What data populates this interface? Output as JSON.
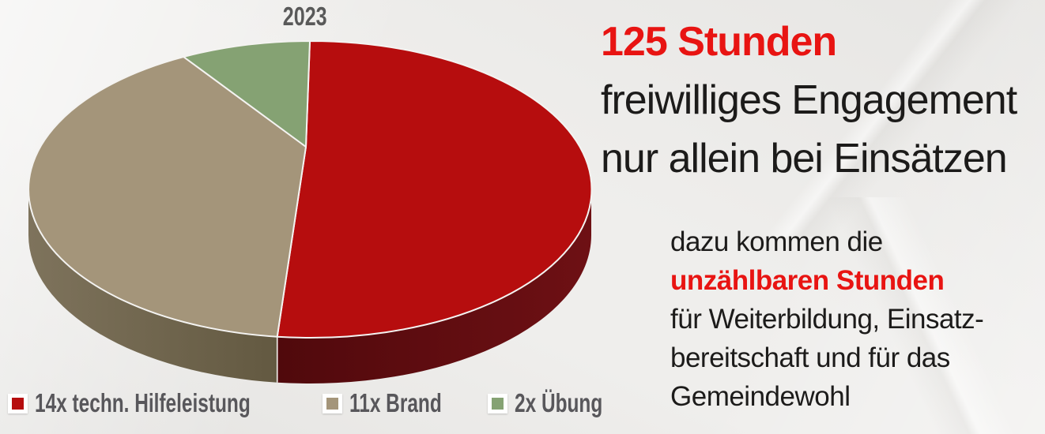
{
  "chart_data": {
    "type": "pie",
    "style": "3d-pie",
    "title": "2023",
    "labels": [
      "14x techn. Hilfeleistung",
      "11x Brand",
      "2x Übung"
    ],
    "values": [
      14,
      11,
      2
    ],
    "colors": [
      "#b60d0e",
      "#a4957a",
      "#85a273"
    ],
    "side_colors": [
      [
        "#50090c",
        "#6e1014"
      ],
      [
        "#7e735c",
        "#635941"
      ],
      null
    ],
    "separator_color": "#f4f3f1",
    "start_angle_deg": 0,
    "direction": "clockwise",
    "legend_position": "bottom",
    "title_color": "#595959",
    "legend_text_color": "#58575b"
  },
  "headline": {
    "line1": "125 Stunden",
    "line2": "freiwilliges Engagement",
    "line3": "nur allein bei Einsätzen",
    "accent_color": "#e81412",
    "text_color": "#1c1b1a"
  },
  "note": {
    "line1": "dazu kommen die",
    "line2": "unzählbaren Stunden",
    "line3": "für Weiterbildung, Einsatz-",
    "line4": "bereitschaft und für das",
    "line5": "Gemeindewohl",
    "accent_color": "#e81412",
    "text_color": "#1c1b1a"
  }
}
